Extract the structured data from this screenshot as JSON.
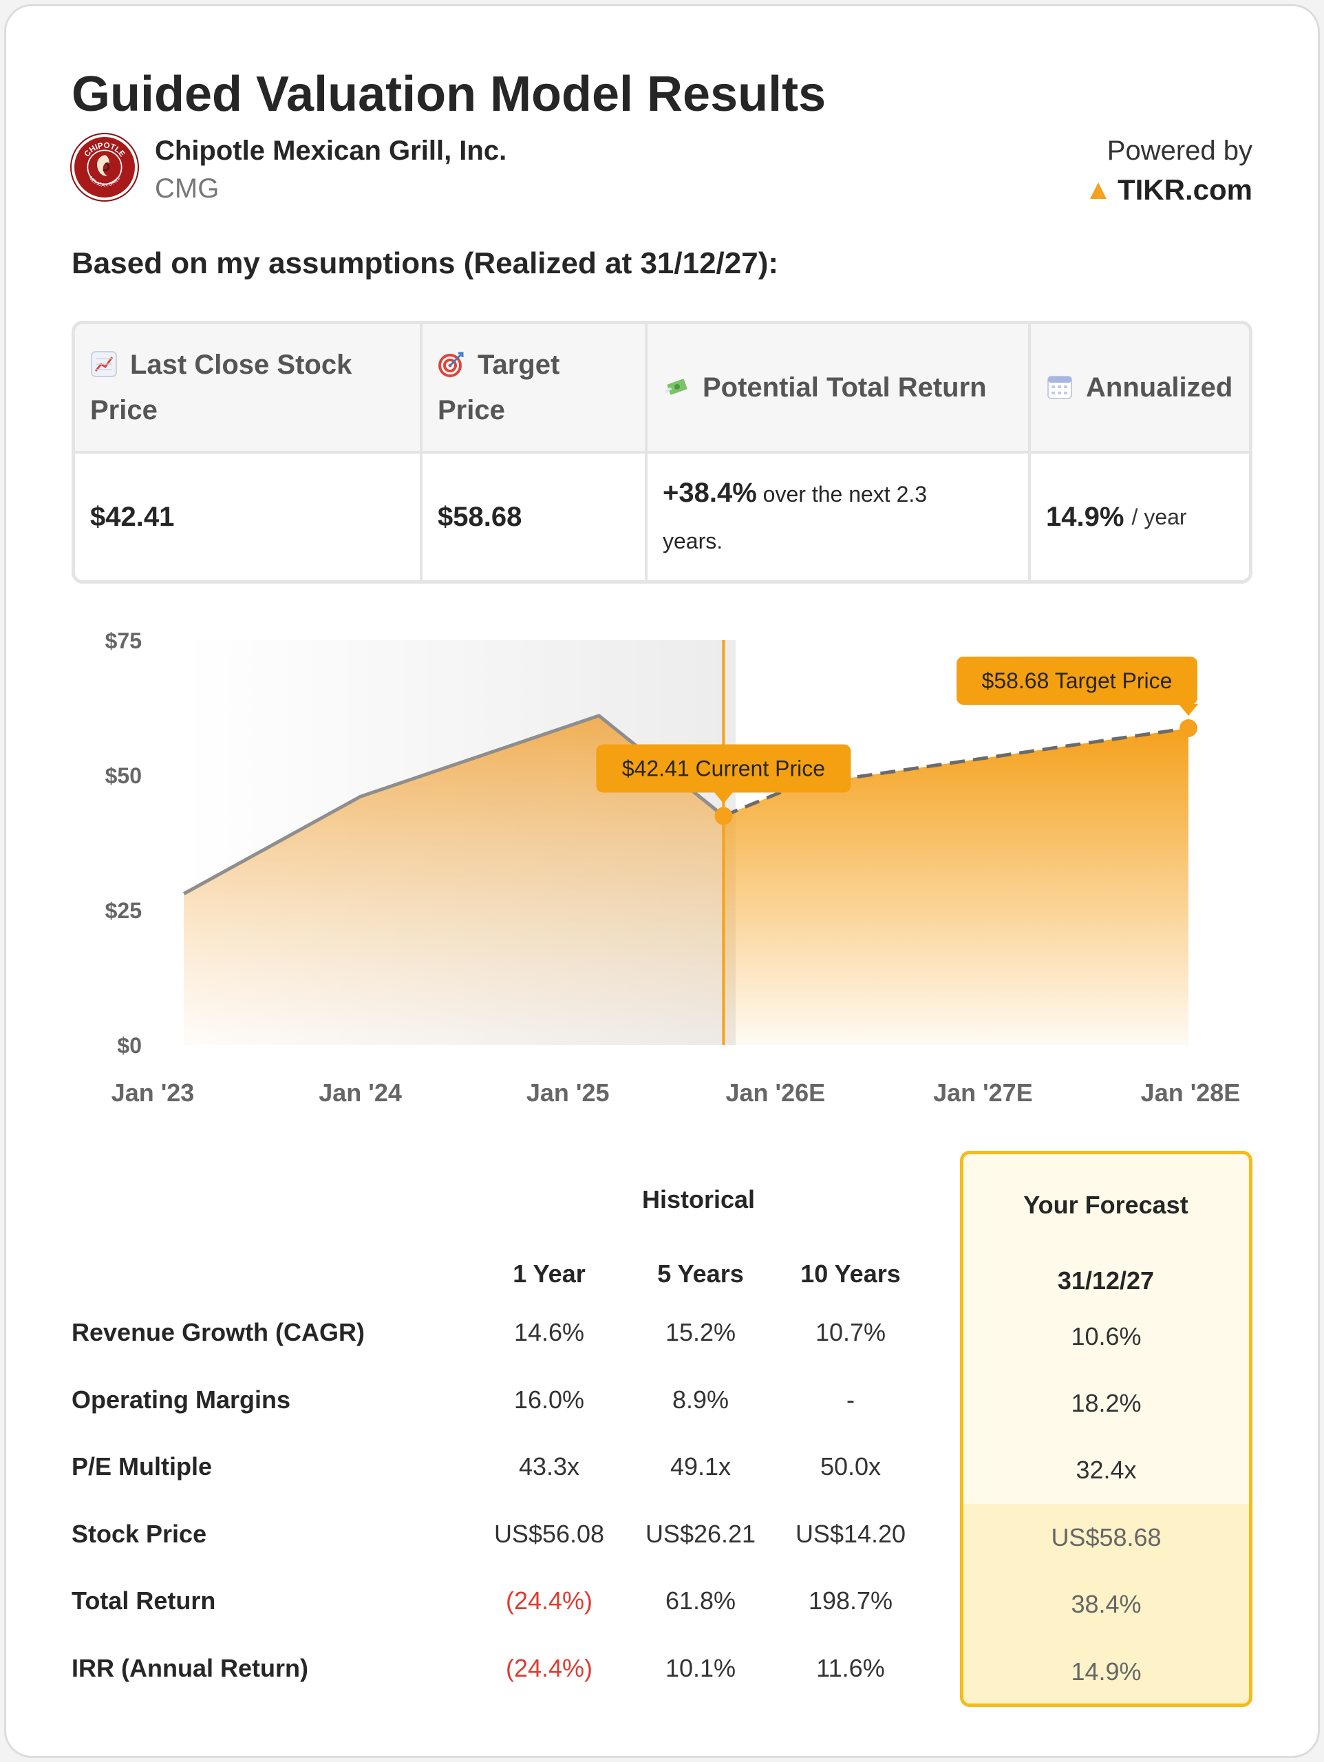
{
  "title": "Guided Valuation Model Results",
  "company": {
    "name": "Chipotle Mexican Grill, Inc.",
    "ticker": "CMG",
    "logo_text_top": "CHIPOTLE",
    "logo_text_bottom": "MEXICAN GRILL",
    "logo_icon": "chipotle-logo"
  },
  "powered": {
    "label": "Powered by",
    "brand": "TIKR.com",
    "brand_icon": "tikr-logo-icon"
  },
  "assumptions": "Based on my assumptions (Realized at 31/12/27):",
  "summary": {
    "headers": [
      {
        "icon": "chart-increasing-icon",
        "line1": "Last Close Stock",
        "line2": "Price"
      },
      {
        "icon": "target-icon",
        "line1": "Target",
        "line2": "Price"
      },
      {
        "icon": "money-with-wings-icon",
        "line1": "Potential Total Return"
      },
      {
        "icon": "calendar-icon",
        "line1": "Annualized"
      }
    ],
    "last_close": "$42.41",
    "target_price": "$58.68",
    "total_return": {
      "value": "+38.4%",
      "text1": "over the next 2.3",
      "text2": "years."
    },
    "annualized": {
      "value": "14.9%",
      "unit": "/ year"
    }
  },
  "chart_data": {
    "type": "area",
    "x_labels": [
      "Jan '23",
      "Jan '24",
      "Jan '25",
      "Jan '26E",
      "Jan '27E",
      "Jan '28E"
    ],
    "y_ticks": [
      "$0",
      "$25",
      "$50",
      "$75"
    ],
    "ylim": [
      0,
      75
    ],
    "historical": [
      {
        "x": 2023.15,
        "y": 28
      },
      {
        "x": 2024.0,
        "y": 46
      },
      {
        "x": 2025.15,
        "y": 61
      },
      {
        "x": 2025.75,
        "y": 42.41
      }
    ],
    "forecast": [
      {
        "x": 2025.75,
        "y": 42.41
      },
      {
        "x": 2026.1,
        "y": 48
      },
      {
        "x": 2027.99,
        "y": 58.68
      }
    ],
    "current_label": "$42.41 Current Price",
    "target_label": "$58.68 Target Price",
    "colors": {
      "accent": "#f5a11c",
      "line": "#8e8e8e",
      "dash": "#6b6b6b",
      "callout": "#f5a011"
    }
  },
  "metrics": {
    "historical_label": "Historical",
    "forecast_label": "Your Forecast",
    "columns": [
      "1 Year",
      "5 Years",
      "10 Years"
    ],
    "forecast_column": "31/12/27",
    "rows": [
      {
        "label": "Revenue Growth (CAGR)",
        "values": [
          "14.6%",
          "15.2%",
          "10.7%"
        ],
        "forecast": "10.6%"
      },
      {
        "label": "Operating Margins",
        "values": [
          "16.0%",
          "8.9%",
          "-"
        ],
        "forecast": "18.2%"
      },
      {
        "label": "P/E Multiple",
        "values": [
          "43.3x",
          "49.1x",
          "50.0x"
        ],
        "forecast": "32.4x"
      },
      {
        "label": "Stock Price",
        "values": [
          "US$56.08",
          "US$26.21",
          "US$14.20"
        ],
        "forecast": "US$58.68"
      },
      {
        "label": "Total Return",
        "values": [
          "(24.4%)",
          "61.8%",
          "198.7%"
        ],
        "forecast": "38.4%"
      },
      {
        "label": "IRR (Annual Return)",
        "values": [
          "(24.4%)",
          "10.1%",
          "11.6%"
        ],
        "forecast": "14.9%"
      }
    ]
  }
}
